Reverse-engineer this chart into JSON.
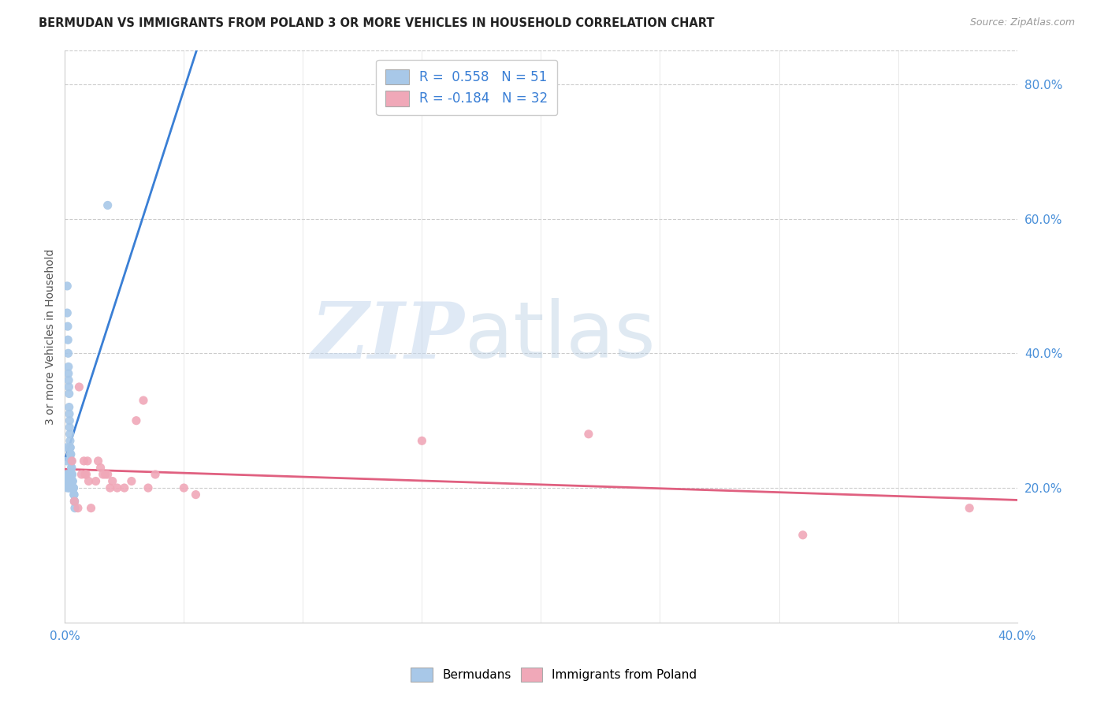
{
  "title": "BERMUDAN VS IMMIGRANTS FROM POLAND 3 OR MORE VEHICLES IN HOUSEHOLD CORRELATION CHART",
  "source": "Source: ZipAtlas.com",
  "ylabel": "3 or more Vehicles in Household",
  "xlim": [
    0.0,
    0.4
  ],
  "ylim": [
    0.0,
    0.85
  ],
  "x_ticks": [
    0.0,
    0.05,
    0.1,
    0.15,
    0.2,
    0.25,
    0.3,
    0.35,
    0.4
  ],
  "x_tick_labels": [
    "0.0%",
    "",
    "",
    "",
    "",
    "",
    "",
    "",
    "40.0%"
  ],
  "y_ticks_right": [
    0.2,
    0.4,
    0.6,
    0.8
  ],
  "y_tick_labels_right": [
    "20.0%",
    "40.0%",
    "60.0%",
    "80.0%"
  ],
  "bermudans_R": 0.558,
  "bermudans_N": 51,
  "poland_R": -0.184,
  "poland_N": 32,
  "color_bermudans": "#a8c8e8",
  "color_poland": "#f0a8b8",
  "color_line_bermudans": "#3a7fd5",
  "color_line_poland": "#e06080",
  "watermark_zip": "ZIP",
  "watermark_atlas": "atlas",
  "bermudans_x": [
    0.001,
    0.001,
    0.0012,
    0.0013,
    0.0014,
    0.0015,
    0.0015,
    0.0016,
    0.0017,
    0.0018,
    0.0018,
    0.0019,
    0.002,
    0.002,
    0.0021,
    0.0022,
    0.0022,
    0.0023,
    0.0024,
    0.0025,
    0.0025,
    0.0026,
    0.0027,
    0.0028,
    0.0028,
    0.0029,
    0.003,
    0.003,
    0.0031,
    0.0032,
    0.0033,
    0.0034,
    0.0035,
    0.0036,
    0.0037,
    0.0038,
    0.0039,
    0.004,
    0.0041,
    0.0042,
    0.0008,
    0.0009,
    0.0009,
    0.001,
    0.0011,
    0.0012,
    0.0014,
    0.0016,
    0.0018,
    0.002,
    0.018
  ],
  "bermudans_y": [
    0.5,
    0.46,
    0.44,
    0.42,
    0.4,
    0.38,
    0.37,
    0.36,
    0.35,
    0.34,
    0.32,
    0.31,
    0.3,
    0.29,
    0.28,
    0.27,
    0.26,
    0.26,
    0.25,
    0.25,
    0.24,
    0.24,
    0.24,
    0.23,
    0.23,
    0.22,
    0.22,
    0.22,
    0.21,
    0.21,
    0.21,
    0.2,
    0.2,
    0.2,
    0.2,
    0.19,
    0.19,
    0.18,
    0.18,
    0.17,
    0.26,
    0.24,
    0.22,
    0.2,
    0.21,
    0.22,
    0.21,
    0.21,
    0.2,
    0.2,
    0.62
  ],
  "poland_x": [
    0.003,
    0.004,
    0.0055,
    0.006,
    0.007,
    0.008,
    0.0085,
    0.009,
    0.0095,
    0.01,
    0.011,
    0.013,
    0.014,
    0.015,
    0.016,
    0.017,
    0.018,
    0.019,
    0.02,
    0.022,
    0.025,
    0.028,
    0.03,
    0.033,
    0.035,
    0.038,
    0.05,
    0.055,
    0.15,
    0.22,
    0.31,
    0.38
  ],
  "poland_y": [
    0.24,
    0.18,
    0.17,
    0.35,
    0.22,
    0.24,
    0.22,
    0.22,
    0.24,
    0.21,
    0.17,
    0.21,
    0.24,
    0.23,
    0.22,
    0.22,
    0.22,
    0.2,
    0.21,
    0.2,
    0.2,
    0.21,
    0.3,
    0.33,
    0.2,
    0.22,
    0.2,
    0.19,
    0.27,
    0.28,
    0.13,
    0.17
  ]
}
